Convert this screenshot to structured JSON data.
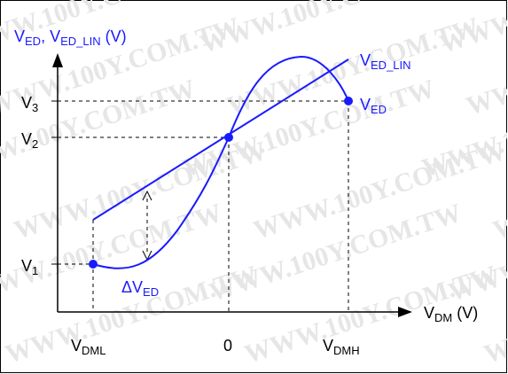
{
  "axes": {
    "y_label": {
      "main": "V",
      "sub1": "ED",
      "mid": ", V",
      "sub2": "ED_LIN",
      "tail": " (V)"
    },
    "x_label": {
      "main": "V",
      "sub": "DM",
      "tail": " (V)"
    }
  },
  "y_ticks": [
    {
      "main": "V",
      "sub": "3"
    },
    {
      "main": "V",
      "sub": "2"
    },
    {
      "main": "V",
      "sub": "1"
    }
  ],
  "x_ticks": [
    {
      "main": "V",
      "sub": "DML"
    },
    {
      "main": "0",
      "sub": ""
    },
    {
      "main": "V",
      "sub": "DMH"
    }
  ],
  "curve_labels": {
    "linear": {
      "main": "V",
      "sub": "ED_LIN"
    },
    "actual": {
      "main": "V",
      "sub": "ED"
    },
    "error": {
      "main": "ΔV",
      "sub": "ED"
    }
  },
  "watermark": "WWW.100Y.COM.TW",
  "colors": {
    "curve": "#1a1aff",
    "axis": "#000000",
    "watermark": "#e6e6e6",
    "border": "#000000"
  }
}
